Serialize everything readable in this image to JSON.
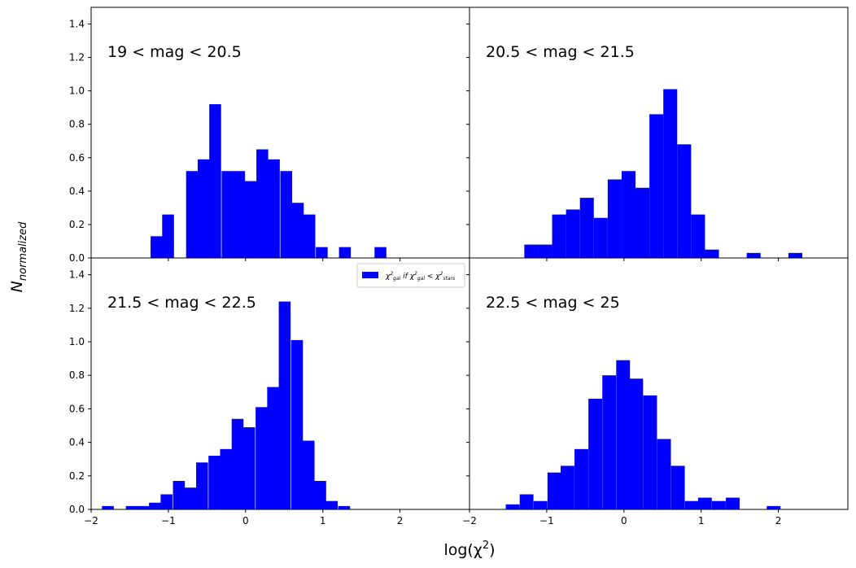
{
  "chart_data": {
    "type": "bar",
    "style": "histogram grid 2x2, shared axes",
    "color": "#0000ff",
    "xlim": [
      -2,
      2.9
    ],
    "ylim": [
      0,
      1.5
    ],
    "xticks": [
      -2,
      -1,
      0,
      1,
      2
    ],
    "xtick_labels": [
      "−2",
      "−1",
      "0",
      "1",
      "2"
    ],
    "yticks": [
      0,
      0.2,
      0.4,
      0.6,
      0.8,
      1.0,
      1.2,
      1.4
    ],
    "ytick_labels": [
      "0.0",
      "0.2",
      "0.4",
      "0.6",
      "0.8",
      "1.0",
      "1.2",
      "1.4"
    ],
    "xlabel": "log(χ²)",
    "ylabel": "N_normalized",
    "legend": {
      "label": "χ²gal if χ²gal < χ²stars",
      "location": "upper right of bottom-left panel"
    },
    "panels": [
      {
        "label": "19 < mag < 20.5",
        "bin_width": 0.153,
        "bins": [
          {
            "x": -1.23,
            "value": 0.13
          },
          {
            "x": -1.08,
            "value": 0.26
          },
          {
            "x": -0.77,
            "value": 0.52
          },
          {
            "x": -0.62,
            "value": 0.59
          },
          {
            "x": -0.47,
            "value": 0.92
          },
          {
            "x": -0.31,
            "value": 0.52
          },
          {
            "x": -0.16,
            "value": 0.52
          },
          {
            "x": -0.01,
            "value": 0.46
          },
          {
            "x": 0.14,
            "value": 0.65
          },
          {
            "x": 0.29,
            "value": 0.59
          },
          {
            "x": 0.45,
            "value": 0.52
          },
          {
            "x": 0.6,
            "value": 0.33
          },
          {
            "x": 0.75,
            "value": 0.26
          },
          {
            "x": 0.91,
            "value": 0.065
          },
          {
            "x": 1.21,
            "value": 0.065
          },
          {
            "x": 1.67,
            "value": 0.065
          }
        ]
      },
      {
        "label": "20.5 < mag < 21.5",
        "bin_width": 0.18,
        "bins": [
          {
            "x": -1.29,
            "value": 0.08
          },
          {
            "x": -1.11,
            "value": 0.08
          },
          {
            "x": -0.93,
            "value": 0.26
          },
          {
            "x": -0.75,
            "value": 0.29
          },
          {
            "x": -0.57,
            "value": 0.36
          },
          {
            "x": -0.39,
            "value": 0.24
          },
          {
            "x": -0.21,
            "value": 0.47
          },
          {
            "x": -0.03,
            "value": 0.52
          },
          {
            "x": 0.15,
            "value": 0.42
          },
          {
            "x": 0.33,
            "value": 0.86
          },
          {
            "x": 0.51,
            "value": 1.01
          },
          {
            "x": 0.69,
            "value": 0.68
          },
          {
            "x": 0.87,
            "value": 0.26
          },
          {
            "x": 1.05,
            "value": 0.05
          },
          {
            "x": 1.59,
            "value": 0.03
          },
          {
            "x": 2.13,
            "value": 0.03
          }
        ]
      },
      {
        "label": "21.5 < mag < 22.5",
        "bin_width": 0.153,
        "bins": [
          {
            "x": -1.86,
            "value": 0.02
          },
          {
            "x": -1.55,
            "value": 0.02
          },
          {
            "x": -1.4,
            "value": 0.02
          },
          {
            "x": -1.25,
            "value": 0.04
          },
          {
            "x": -1.1,
            "value": 0.09
          },
          {
            "x": -0.94,
            "value": 0.17
          },
          {
            "x": -0.79,
            "value": 0.13
          },
          {
            "x": -0.64,
            "value": 0.28
          },
          {
            "x": -0.48,
            "value": 0.32
          },
          {
            "x": -0.33,
            "value": 0.36
          },
          {
            "x": -0.18,
            "value": 0.54
          },
          {
            "x": -0.03,
            "value": 0.49
          },
          {
            "x": 0.13,
            "value": 0.61
          },
          {
            "x": 0.28,
            "value": 0.73
          },
          {
            "x": 0.43,
            "value": 1.24
          },
          {
            "x": 0.59,
            "value": 1.01
          },
          {
            "x": 0.74,
            "value": 0.41
          },
          {
            "x": 0.89,
            "value": 0.17
          },
          {
            "x": 1.04,
            "value": 0.05
          },
          {
            "x": 1.2,
            "value": 0.02
          }
        ]
      },
      {
        "label": "22.5 < mag < 25",
        "bin_width": 0.178,
        "bins": [
          {
            "x": -1.53,
            "value": 0.03
          },
          {
            "x": -1.35,
            "value": 0.09
          },
          {
            "x": -1.17,
            "value": 0.05
          },
          {
            "x": -0.99,
            "value": 0.22
          },
          {
            "x": -0.82,
            "value": 0.26
          },
          {
            "x": -0.64,
            "value": 0.36
          },
          {
            "x": -0.46,
            "value": 0.66
          },
          {
            "x": -0.28,
            "value": 0.8
          },
          {
            "x": -0.1,
            "value": 0.89
          },
          {
            "x": 0.07,
            "value": 0.78
          },
          {
            "x": 0.25,
            "value": 0.68
          },
          {
            "x": 0.43,
            "value": 0.42
          },
          {
            "x": 0.61,
            "value": 0.26
          },
          {
            "x": 0.79,
            "value": 0.05
          },
          {
            "x": 0.96,
            "value": 0.07
          },
          {
            "x": 1.14,
            "value": 0.05
          },
          {
            "x": 1.32,
            "value": 0.07
          },
          {
            "x": 1.85,
            "value": 0.02
          }
        ]
      }
    ]
  }
}
